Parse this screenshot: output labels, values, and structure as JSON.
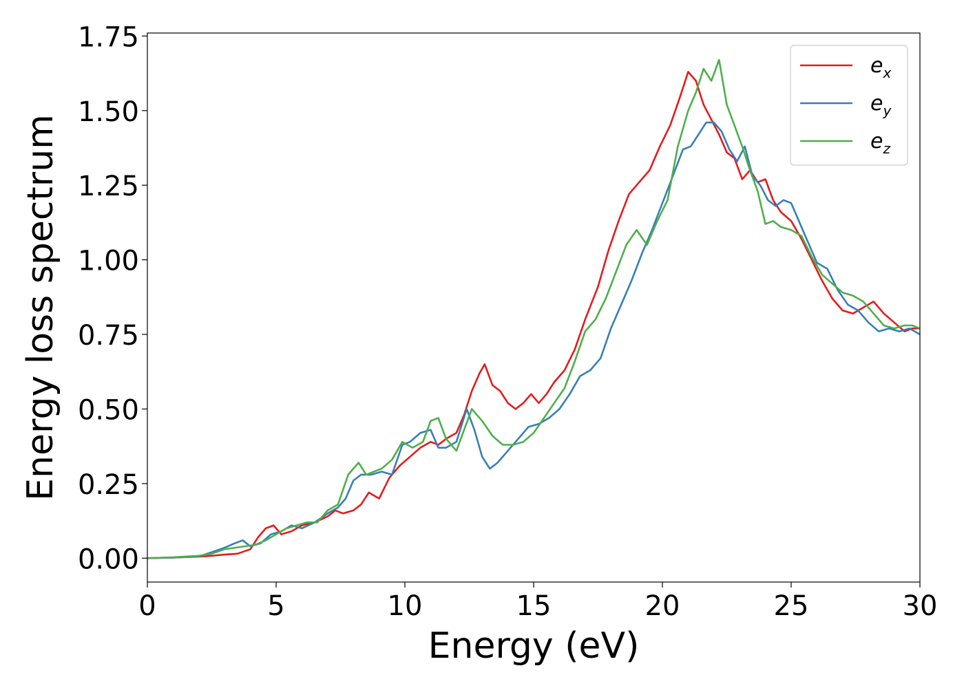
{
  "chart_data": {
    "type": "line",
    "xlabel": "Energy (eV)",
    "ylabel": "Energy loss spectrum",
    "xlim": [
      0,
      30
    ],
    "ylim": [
      -0.08,
      1.76
    ],
    "xticks": [
      "0",
      "5",
      "10",
      "15",
      "20",
      "25",
      "30"
    ],
    "yticks": [
      "0.00",
      "0.25",
      "0.50",
      "0.75",
      "1.00",
      "1.25",
      "1.50",
      "1.75"
    ],
    "grid": false,
    "legend_position": "top-right",
    "series": [
      {
        "name": "e_x",
        "label_base": "e",
        "label_sub": "x",
        "color": "#e41a1c",
        "x": [
          0,
          1,
          2,
          2.5,
          3,
          3.5,
          4,
          4.3,
          4.6,
          4.9,
          5.2,
          5.6,
          6,
          6.5,
          7,
          7.3,
          7.6,
          8,
          8.3,
          8.6,
          9,
          9.4,
          9.8,
          10.2,
          10.6,
          11,
          11.3,
          11.6,
          12,
          12.3,
          12.6,
          12.9,
          13.1,
          13.4,
          13.7,
          14,
          14.3,
          14.6,
          14.9,
          15.2,
          15.5,
          15.8,
          16.2,
          16.6,
          17,
          17.5,
          17.9,
          18.3,
          18.7,
          19.1,
          19.5,
          19.9,
          20.3,
          20.7,
          21,
          21.3,
          21.6,
          21.9,
          22.2,
          22.5,
          22.8,
          23.1,
          23.4,
          23.7,
          24,
          24.3,
          24.6,
          25,
          25.4,
          25.8,
          26.2,
          26.6,
          27,
          27.4,
          27.8,
          28.2,
          28.6,
          29,
          29.4,
          29.7,
          30
        ],
        "y": [
          0,
          0.002,
          0.005,
          0.008,
          0.012,
          0.015,
          0.03,
          0.07,
          0.1,
          0.11,
          0.08,
          0.09,
          0.11,
          0.12,
          0.14,
          0.16,
          0.15,
          0.16,
          0.18,
          0.22,
          0.2,
          0.27,
          0.31,
          0.34,
          0.37,
          0.39,
          0.38,
          0.4,
          0.42,
          0.48,
          0.56,
          0.62,
          0.65,
          0.58,
          0.56,
          0.52,
          0.5,
          0.52,
          0.55,
          0.52,
          0.55,
          0.59,
          0.63,
          0.7,
          0.8,
          0.91,
          1.03,
          1.13,
          1.22,
          1.26,
          1.3,
          1.38,
          1.45,
          1.55,
          1.63,
          1.6,
          1.52,
          1.47,
          1.42,
          1.36,
          1.34,
          1.27,
          1.3,
          1.26,
          1.27,
          1.2,
          1.16,
          1.13,
          1.07,
          1.0,
          0.93,
          0.87,
          0.83,
          0.82,
          0.84,
          0.86,
          0.82,
          0.79,
          0.76,
          0.77,
          0.77
        ]
      },
      {
        "name": "e_y",
        "label_base": "e",
        "label_sub": "y",
        "color": "#377eb8",
        "x": [
          0,
          1,
          2,
          2.5,
          3,
          3.4,
          3.7,
          4,
          4.4,
          4.8,
          5.2,
          5.6,
          6,
          6.5,
          7,
          7.4,
          7.7,
          8,
          8.3,
          8.7,
          9.1,
          9.5,
          9.9,
          10.2,
          10.6,
          11,
          11.3,
          11.6,
          12,
          12.4,
          12.7,
          13,
          13.3,
          13.6,
          14,
          14.4,
          14.8,
          15.2,
          15.6,
          16,
          16.4,
          16.8,
          17.2,
          17.6,
          18,
          18.4,
          18.8,
          19.2,
          19.6,
          20,
          20.4,
          20.8,
          21.1,
          21.4,
          21.7,
          22,
          22.3,
          22.6,
          22.9,
          23.2,
          23.5,
          23.8,
          24.1,
          24.4,
          24.7,
          25,
          25.3,
          25.6,
          26,
          26.4,
          26.8,
          27.2,
          27.6,
          28,
          28.4,
          28.8,
          29.2,
          29.6,
          30
        ],
        "y": [
          0,
          0.002,
          0.006,
          0.02,
          0.035,
          0.05,
          0.06,
          0.04,
          0.05,
          0.08,
          0.09,
          0.11,
          0.1,
          0.12,
          0.15,
          0.17,
          0.2,
          0.26,
          0.28,
          0.28,
          0.29,
          0.28,
          0.38,
          0.39,
          0.42,
          0.43,
          0.37,
          0.37,
          0.39,
          0.5,
          0.43,
          0.34,
          0.3,
          0.32,
          0.36,
          0.4,
          0.44,
          0.45,
          0.47,
          0.5,
          0.55,
          0.61,
          0.63,
          0.67,
          0.77,
          0.85,
          0.93,
          1.02,
          1.1,
          1.19,
          1.28,
          1.37,
          1.38,
          1.42,
          1.46,
          1.46,
          1.43,
          1.37,
          1.33,
          1.38,
          1.28,
          1.25,
          1.2,
          1.18,
          1.2,
          1.19,
          1.13,
          1.07,
          0.99,
          0.97,
          0.9,
          0.85,
          0.83,
          0.79,
          0.76,
          0.77,
          0.76,
          0.77,
          0.75
        ]
      },
      {
        "name": "e_z",
        "label_base": "e",
        "label_sub": "z",
        "color": "#4daf4a",
        "x": [
          0,
          1,
          2,
          2.5,
          3,
          3.4,
          3.8,
          4.2,
          4.6,
          5,
          5.4,
          5.8,
          6.2,
          6.6,
          7,
          7.4,
          7.8,
          8.2,
          8.5,
          8.8,
          9.1,
          9.5,
          9.9,
          10.3,
          10.7,
          11,
          11.3,
          11.6,
          12,
          12.3,
          12.6,
          13,
          13.4,
          13.8,
          14.2,
          14.6,
          15,
          15.4,
          15.8,
          16.2,
          16.6,
          17,
          17.4,
          17.8,
          18.2,
          18.6,
          19,
          19.4,
          19.8,
          20.2,
          20.6,
          21,
          21.3,
          21.6,
          21.9,
          22.2,
          22.5,
          22.8,
          23.1,
          23.4,
          23.7,
          24,
          24.3,
          24.6,
          25,
          25.4,
          25.8,
          26.2,
          26.6,
          27,
          27.4,
          27.8,
          28.2,
          28.6,
          29,
          29.4,
          29.7,
          30
        ],
        "y": [
          0,
          0.003,
          0.008,
          0.015,
          0.03,
          0.035,
          0.04,
          0.045,
          0.06,
          0.08,
          0.1,
          0.11,
          0.12,
          0.12,
          0.16,
          0.18,
          0.28,
          0.32,
          0.28,
          0.29,
          0.3,
          0.33,
          0.39,
          0.37,
          0.39,
          0.46,
          0.47,
          0.4,
          0.36,
          0.43,
          0.5,
          0.46,
          0.41,
          0.38,
          0.38,
          0.39,
          0.42,
          0.47,
          0.52,
          0.57,
          0.66,
          0.76,
          0.8,
          0.87,
          0.96,
          1.05,
          1.1,
          1.05,
          1.13,
          1.2,
          1.38,
          1.5,
          1.56,
          1.64,
          1.6,
          1.67,
          1.52,
          1.45,
          1.38,
          1.3,
          1.23,
          1.12,
          1.13,
          1.11,
          1.1,
          1.08,
          1.01,
          0.95,
          0.92,
          0.89,
          0.88,
          0.86,
          0.82,
          0.78,
          0.77,
          0.78,
          0.78,
          0.77
        ]
      }
    ]
  }
}
